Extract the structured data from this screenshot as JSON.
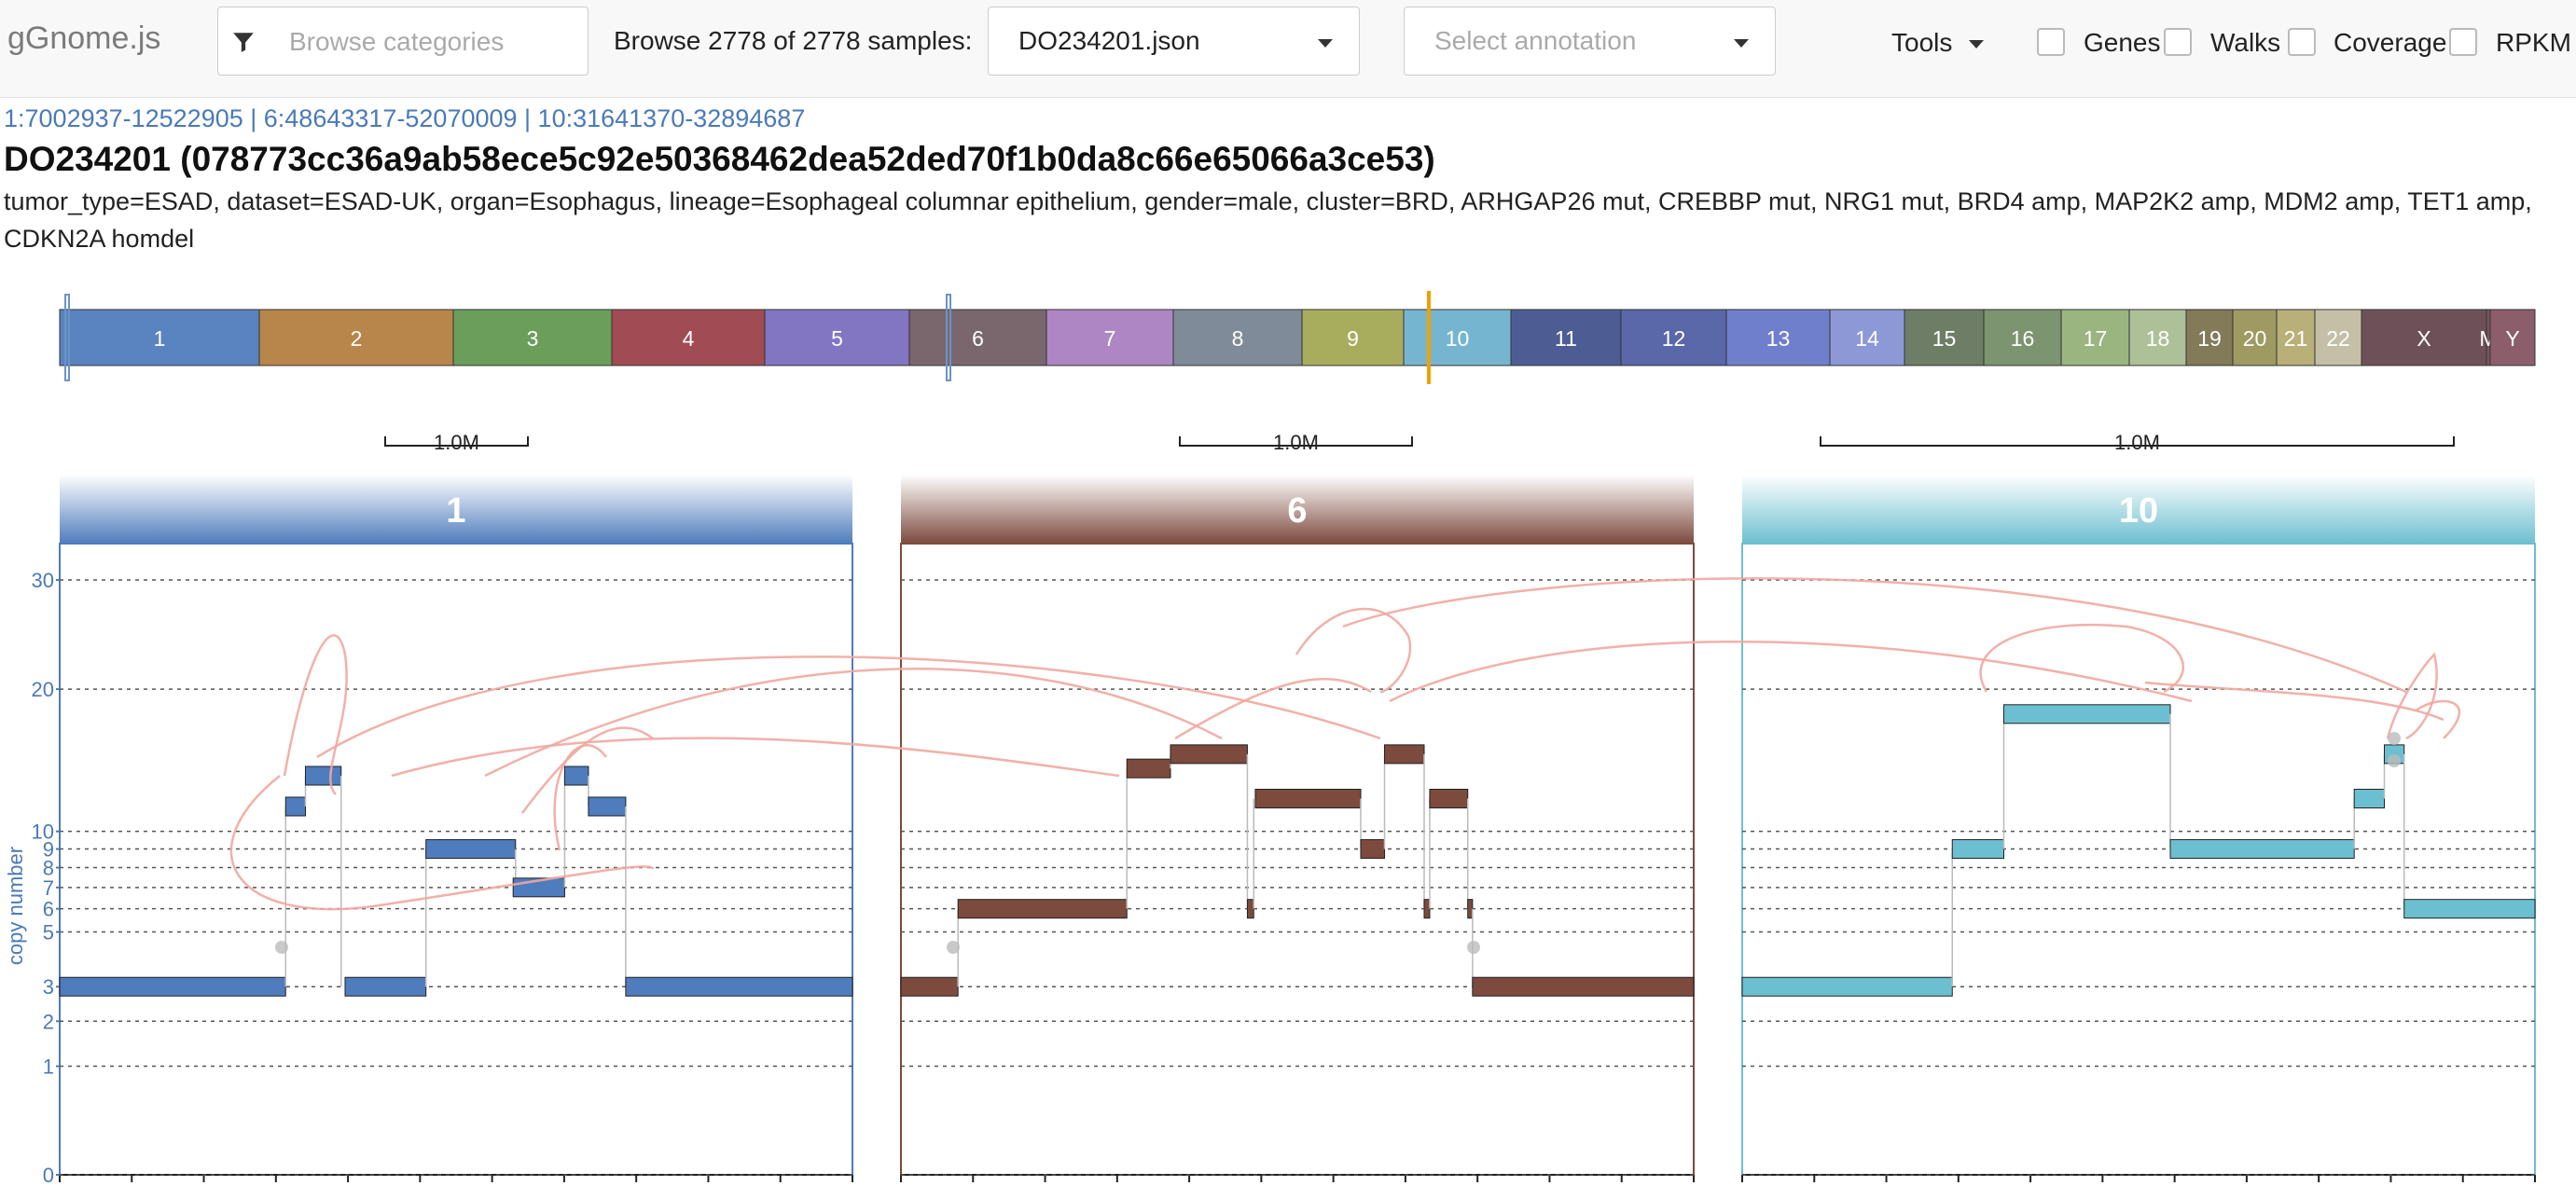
{
  "app": {
    "brand": "gGnome.js"
  },
  "search": {
    "placeholder": "Browse categories"
  },
  "browse": {
    "text": "Browse 2778 of 2778 samples:"
  },
  "sample_select": {
    "value": "DO234201.json"
  },
  "annotation_select": {
    "placeholder": "Select annotation"
  },
  "tools": {
    "label": "Tools"
  },
  "toggles": [
    {
      "label": "Genes",
      "checked": false
    },
    {
      "label": "Walks",
      "checked": false
    },
    {
      "label": "Coverage",
      "checked": false
    },
    {
      "label": "RPKM",
      "checked": false
    }
  ],
  "locus": {
    "text": "1:7002937-12522905 | 6:48643317-52070009 | 10:31641370-32894687"
  },
  "sample": {
    "title": "DO234201 (078773cc36a9ab58ece5c92e50368462dea52ded70f1b0da8c66e65066a3ce53)",
    "description": "tumor_type=ESAD, dataset=ESAD-UK, organ=Esophagus, lineage=Esophageal columnar epithelium, gender=male, cluster=BRD, ARHGAP26 mut, CREBBP mut, NRG1 mut, BRD4 amp, MAP2K2 amp, MDM2 amp, TET1 amp, CDKN2A homdel"
  },
  "colors": {
    "brand_text": "#7b7b7b",
    "link": "#4a7ab8",
    "chr1": "#4f7cbd",
    "chr6": "#7d4a3e",
    "chr10": "#6cbfd0",
    "junction": "#f0a8a0",
    "brush_1_6": "#6b93c8",
    "brush_10": "#f0a000"
  },
  "chromosomes": [
    {
      "label": "1",
      "color": "#5a84c0"
    },
    {
      "label": "2",
      "color": "#b8864a"
    },
    {
      "label": "3",
      "color": "#6a9e5a"
    },
    {
      "label": "4",
      "color": "#a14b54"
    },
    {
      "label": "5",
      "color": "#8276c2"
    },
    {
      "label": "6",
      "color": "#7a676e"
    },
    {
      "label": "7",
      "color": "#ae86c4"
    },
    {
      "label": "8",
      "color": "#7f8b98"
    },
    {
      "label": "9",
      "color": "#a8ad5e"
    },
    {
      "label": "10",
      "color": "#76b5d0"
    },
    {
      "label": "11",
      "color": "#4d5d94"
    },
    {
      "label": "12",
      "color": "#5a67a8"
    },
    {
      "label": "13",
      "color": "#707fcc"
    },
    {
      "label": "14",
      "color": "#8d98d6"
    },
    {
      "label": "15",
      "color": "#6e7e66"
    },
    {
      "label": "16",
      "color": "#7d9470"
    },
    {
      "label": "17",
      "color": "#9ab580"
    },
    {
      "label": "18",
      "color": "#aec098"
    },
    {
      "label": "19",
      "color": "#827a58"
    },
    {
      "label": "20",
      "color": "#9e9a62"
    },
    {
      "label": "21",
      "color": "#b8b078"
    },
    {
      "label": "22",
      "color": "#c4bfa6"
    },
    {
      "label": "X",
      "color": "#6e5158"
    },
    {
      "label": "M",
      "color": "#7a5560"
    },
    {
      "label": "Y",
      "color": "#8c5e6c"
    }
  ],
  "scale_label": "1.0M",
  "panels": [
    {
      "label": "1",
      "color": "#4f7cbd",
      "light": "#c8d8ee"
    },
    {
      "label": "6",
      "color": "#7d4a3e",
      "light": "#d9c2bb"
    },
    {
      "label": "10",
      "color": "#6cbfd0",
      "light": "#d6eff4"
    }
  ],
  "y_axis": {
    "label": "copy number",
    "ticks": [
      "0",
      "1",
      "2",
      "3",
      "5",
      "6",
      "7",
      "8",
      "9",
      "10",
      "20",
      "30"
    ],
    "tick_values": [
      0,
      1,
      2,
      3,
      5,
      6,
      7,
      8,
      9,
      10,
      20,
      30
    ],
    "scale": "sqrt"
  },
  "segments": {
    "chr1": [
      {
        "x0": 0.0,
        "x1": 0.285,
        "cn": 3
      },
      {
        "x0": 0.285,
        "x1": 0.31,
        "cn": 11.5
      },
      {
        "x0": 0.31,
        "x1": 0.355,
        "cn": 13.5
      },
      {
        "x0": 0.36,
        "x1": 0.462,
        "cn": 3
      },
      {
        "x0": 0.462,
        "x1": 0.575,
        "cn": 9
      },
      {
        "x0": 0.572,
        "x1": 0.637,
        "cn": 7
      },
      {
        "x0": 0.637,
        "x1": 0.667,
        "cn": 13.5
      },
      {
        "x0": 0.667,
        "x1": 0.714,
        "cn": 11.5
      },
      {
        "x0": 0.714,
        "x1": 1.0,
        "cn": 3
      }
    ],
    "chr6": [
      {
        "x0": 0.0,
        "x1": 0.072,
        "cn": 3
      },
      {
        "x0": 0.072,
        "x1": 0.285,
        "cn": 6
      },
      {
        "x0": 0.285,
        "x1": 0.34,
        "cn": 14
      },
      {
        "x0": 0.34,
        "x1": 0.437,
        "cn": 15
      },
      {
        "x0": 0.437,
        "x1": 0.445,
        "cn": 6
      },
      {
        "x0": 0.447,
        "x1": 0.58,
        "cn": 12
      },
      {
        "x0": 0.58,
        "x1": 0.61,
        "cn": 9
      },
      {
        "x0": 0.61,
        "x1": 0.66,
        "cn": 15
      },
      {
        "x0": 0.66,
        "x1": 0.667,
        "cn": 6
      },
      {
        "x0": 0.667,
        "x1": 0.715,
        "cn": 12
      },
      {
        "x0": 0.715,
        "x1": 0.721,
        "cn": 6
      },
      {
        "x0": 0.721,
        "x1": 1.0,
        "cn": 3
      }
    ],
    "chr10": [
      {
        "x0": 0.0,
        "x1": 0.265,
        "cn": 3
      },
      {
        "x0": 0.265,
        "x1": 0.33,
        "cn": 9
      },
      {
        "x0": 0.33,
        "x1": 0.54,
        "cn": 18
      },
      {
        "x0": 0.54,
        "x1": 0.772,
        "cn": 9
      },
      {
        "x0": 0.772,
        "x1": 0.81,
        "cn": 12
      },
      {
        "x0": 0.81,
        "x1": 0.835,
        "cn": 15
      },
      {
        "x0": 0.835,
        "x1": 1.0,
        "cn": 6
      }
    ]
  }
}
